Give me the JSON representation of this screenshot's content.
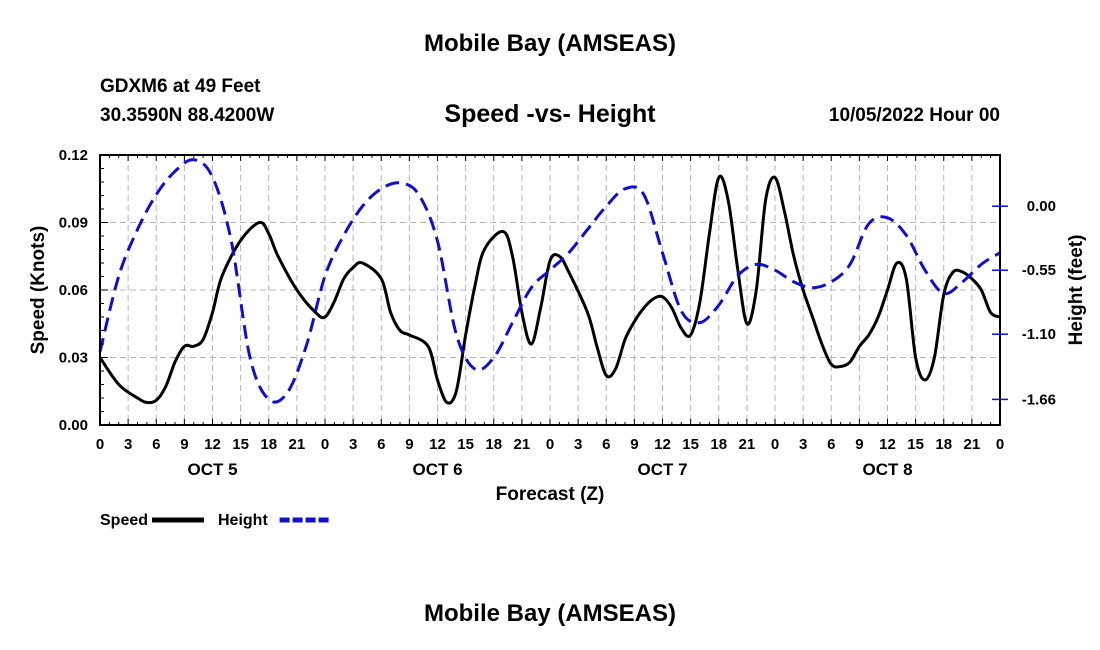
{
  "header": {
    "title": "Mobile Bay (AMSEAS)",
    "station": "GDXM6 at 49 Feet",
    "coordinates": "30.3590N  88.4200W",
    "chart_title": "Speed -vs- Height",
    "date": "10/05/2022 Hour 00"
  },
  "footer": {
    "title": "Mobile Bay (AMSEAS)"
  },
  "chart_data": {
    "type": "line",
    "title": "Speed -vs- Height",
    "xlabel": "Forecast (Z)",
    "ylabel": "Speed (Knots)",
    "ylabel_right": "Height (feet)",
    "x_range_hours": [
      0,
      96
    ],
    "ylim": [
      0,
      0.12
    ],
    "ylim_right": [
      -1.88,
      0.44
    ],
    "y_ticks": [
      "0.00",
      "0.03",
      "0.06",
      "0.09",
      "0.12"
    ],
    "y_ticks_values": [
      0,
      0.03,
      0.06,
      0.09,
      0.12
    ],
    "y_right_ticks": [
      "0.00",
      "-0.55",
      "-1.10",
      "-1.66"
    ],
    "y_right_ticks_values": [
      0,
      -0.55,
      -1.1,
      -1.66
    ],
    "x_tick_labels": [
      "0",
      "3",
      "6",
      "9",
      "12",
      "15",
      "18",
      "21",
      "0",
      "3",
      "6",
      "9",
      "12",
      "15",
      "18",
      "21",
      "0",
      "3",
      "6",
      "9",
      "12",
      "15",
      "18",
      "21",
      "0",
      "3",
      "6",
      "9",
      "12",
      "15",
      "18",
      "21",
      "0"
    ],
    "day_labels": [
      {
        "label": "OCT 5",
        "hour": 12
      },
      {
        "label": "OCT 6",
        "hour": 36
      },
      {
        "label": "OCT 7",
        "hour": 60
      },
      {
        "label": "OCT 8",
        "hour": 84
      }
    ],
    "grid": true,
    "legend": "bottom-left",
    "series": [
      {
        "name": "Speed",
        "axis": "left",
        "color": "#000000",
        "style": "solid",
        "x": [
          0,
          2,
          4,
          5,
          6,
          7,
          8,
          9,
          10,
          11,
          12,
          13,
          15,
          17,
          18,
          19,
          21,
          23,
          24,
          25,
          26,
          27,
          28,
          30,
          31,
          32,
          33,
          35,
          36,
          37,
          38,
          39,
          40,
          41,
          43,
          44,
          45,
          46,
          47,
          48,
          49,
          50,
          52,
          53,
          54,
          55,
          56,
          57,
          58,
          59,
          60,
          61,
          62,
          63,
          64,
          65,
          66,
          67,
          68,
          69,
          70,
          71,
          72,
          73,
          74,
          75,
          76,
          77,
          78,
          79,
          80,
          81,
          82,
          83,
          84,
          85,
          86,
          87,
          88,
          89,
          90,
          91,
          92,
          93,
          94,
          95,
          96
        ],
        "y": [
          0.03,
          0.018,
          0.012,
          0.01,
          0.011,
          0.017,
          0.028,
          0.035,
          0.035,
          0.038,
          0.05,
          0.066,
          0.082,
          0.09,
          0.085,
          0.075,
          0.06,
          0.05,
          0.048,
          0.055,
          0.065,
          0.07,
          0.072,
          0.065,
          0.05,
          0.042,
          0.04,
          0.035,
          0.02,
          0.01,
          0.015,
          0.04,
          0.062,
          0.078,
          0.086,
          0.075,
          0.05,
          0.036,
          0.052,
          0.073,
          0.075,
          0.068,
          0.05,
          0.035,
          0.022,
          0.025,
          0.038,
          0.046,
          0.052,
          0.056,
          0.057,
          0.052,
          0.043,
          0.04,
          0.055,
          0.085,
          0.11,
          0.1,
          0.07,
          0.045,
          0.06,
          0.1,
          0.11,
          0.095,
          0.075,
          0.06,
          0.048,
          0.036,
          0.027,
          0.026,
          0.028,
          0.035,
          0.04,
          0.048,
          0.06,
          0.072,
          0.065,
          0.03,
          0.02,
          0.03,
          0.058,
          0.068,
          0.068,
          0.065,
          0.06,
          0.05,
          0.048
        ]
      },
      {
        "name": "Height",
        "axis": "right",
        "color": "#1010cc",
        "style": "dashed",
        "x": [
          0,
          2,
          4,
          6,
          8,
          10,
          12,
          14,
          16,
          18,
          20,
          22,
          24,
          26,
          28,
          30,
          32,
          34,
          36,
          38,
          40,
          42,
          44,
          46,
          48,
          50,
          52,
          54,
          56,
          58,
          60,
          62,
          64,
          66,
          68,
          70,
          72,
          74,
          76,
          78,
          80,
          82,
          84,
          86,
          88,
          90,
          92,
          94,
          96
        ],
        "y": [
          -1.25,
          -0.6,
          -0.2,
          0.1,
          0.3,
          0.4,
          0.25,
          -0.3,
          -1.3,
          -1.66,
          -1.6,
          -1.2,
          -0.6,
          -0.25,
          0.0,
          0.15,
          0.2,
          0.1,
          -0.3,
          -1.1,
          -1.4,
          -1.3,
          -1.0,
          -0.7,
          -0.55,
          -0.4,
          -0.2,
          0.0,
          0.15,
          0.1,
          -0.4,
          -0.9,
          -1.0,
          -0.85,
          -0.6,
          -0.5,
          -0.55,
          -0.65,
          -0.7,
          -0.65,
          -0.5,
          -0.15,
          -0.1,
          -0.25,
          -0.55,
          -0.75,
          -0.65,
          -0.5,
          -0.4
        ]
      }
    ]
  }
}
